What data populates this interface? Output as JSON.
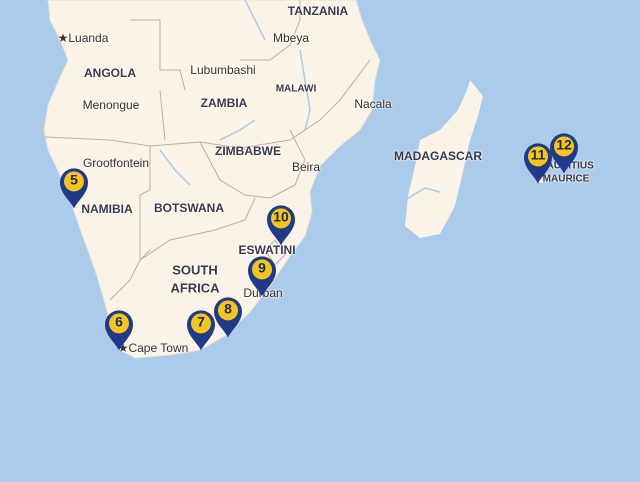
{
  "map": {
    "colors": {
      "sea": "#aacbea",
      "land": "#faf3e8",
      "border": "#b9b2a8",
      "pin": "#1f3a8a",
      "pin_inner": "#f5c518"
    },
    "labels": {
      "tanzania": "TANZANIA",
      "luanda": "Luanda",
      "mbeya": "Mbeya",
      "angola": "ANGOLA",
      "lubumbashi": "Lubumbashi",
      "malawi": "MALAWI",
      "nacala": "Nacala",
      "menongue": "Menongue",
      "zambia": "ZAMBIA",
      "madagascar": "MADAGASCAR",
      "zimbabwe": "ZIMBABWE",
      "grootfontein": "Grootfontein",
      "beira": "Beira",
      "mauritius": "MAURITIUS",
      "maurice": "MAURICE",
      "namibia": "NAMIBIA",
      "botswana": "BOTSWANA",
      "eswatini": "ESWATINI",
      "south": "SOUTH",
      "africa": "AFRICA",
      "durban": "Durban",
      "cape_town": "Cape Town"
    },
    "markers": [
      "5",
      "6",
      "7",
      "8",
      "9",
      "10",
      "11",
      "12"
    ]
  }
}
